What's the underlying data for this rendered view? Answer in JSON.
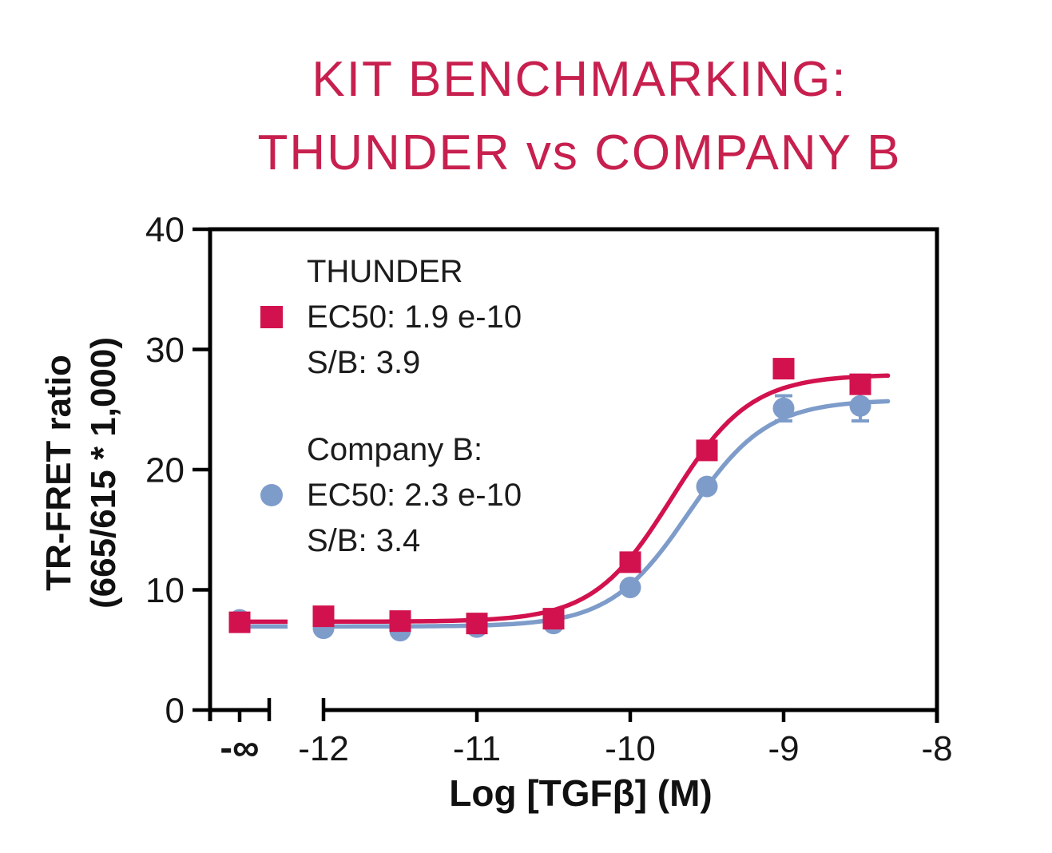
{
  "colors": {
    "title": "#C7204E",
    "red": "#D2124E",
    "blue": "#7E9CCA",
    "axis": "#000000",
    "text": "#1C1C1C"
  },
  "chart_data": {
    "type": "scatter",
    "subtype": "dose-response-sigmoid-fit",
    "title": [
      "KIT BENCHMARKING:",
      "THUNDER vs COMPANY B"
    ],
    "xlabel": "Log [TGFβ] (M)",
    "ylabel": [
      "TR-FRET ratio",
      "(665/615 * 1,000)"
    ],
    "ylim": [
      0,
      40
    ],
    "y_ticks": [
      "0",
      "10",
      "20",
      "30",
      "40"
    ],
    "x_ticks": [
      {
        "label": "-∞",
        "log": "-inf",
        "tick": "down",
        "bold": true
      },
      {
        "label": "-12",
        "log": -12,
        "tick": "none"
      },
      {
        "label": "-11",
        "log": -11,
        "tick": "down"
      },
      {
        "label": "-10",
        "log": -10,
        "tick": "down"
      },
      {
        "label": "-9",
        "log": -9,
        "tick": "down"
      },
      {
        "label": "-8",
        "log": -8,
        "tick": "none"
      }
    ],
    "axis_break_between": [
      "-inf",
      "-12"
    ],
    "legend_position": "inside-top-left",
    "grid": false,
    "series": [
      {
        "name": "THUNDER",
        "ec50_label": "EC50: 1.9 e-10",
        "sb_label": "S/B: 3.9",
        "marker": "square",
        "color_key": "red",
        "points": [
          {
            "log": "-inf",
            "y": 7.3
          },
          {
            "log": -12,
            "y": 7.8
          },
          {
            "log": -11.5,
            "y": 7.4
          },
          {
            "log": -11,
            "y": 7.2
          },
          {
            "log": -10.5,
            "y": 7.6
          },
          {
            "log": -10,
            "y": 12.3
          },
          {
            "log": -9.5,
            "y": 21.6
          },
          {
            "log": -9,
            "y": 28.4
          },
          {
            "log": -8.5,
            "y": 27.1
          }
        ],
        "fit": {
          "bottom": 7.35,
          "top": 27.9,
          "logEC50": -9.73,
          "hill": 1.7
        }
      },
      {
        "name": "Company B:",
        "ec50_label": "EC50: 2.3 e-10",
        "sb_label": "S/B: 3.4",
        "marker": "circle",
        "color_key": "blue",
        "points": [
          {
            "log": "-inf",
            "y": 7.5
          },
          {
            "log": -12,
            "y": 6.8
          },
          {
            "log": -11.5,
            "y": 6.6
          },
          {
            "log": -11,
            "y": 6.9
          },
          {
            "log": -10.5,
            "y": 7.2
          },
          {
            "log": -10,
            "y": 10.2
          },
          {
            "log": -9.5,
            "y": 18.6
          },
          {
            "log": -9,
            "y": 25.1,
            "err": 1.05
          },
          {
            "log": -8.5,
            "y": 25.3,
            "err": 1.25
          }
        ],
        "fit": {
          "bottom": 6.95,
          "top": 25.8,
          "logEC50": -9.62,
          "hill": 1.7
        }
      }
    ]
  }
}
